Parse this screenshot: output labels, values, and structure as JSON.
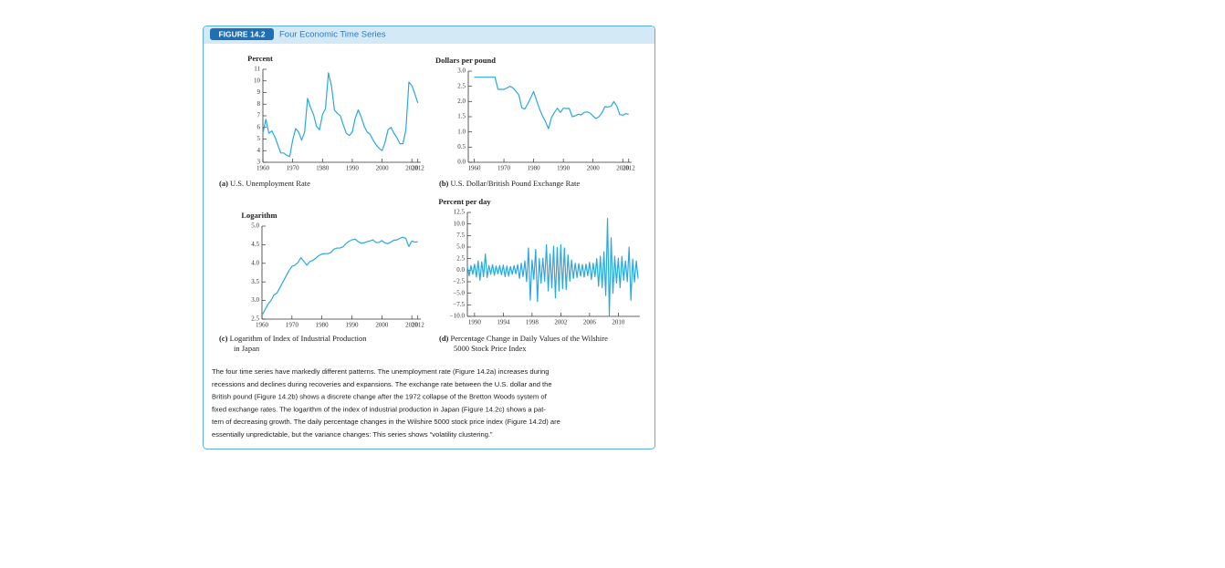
{
  "figure": {
    "label": "FIGURE 14.2",
    "title": "Four Economic Time Series",
    "text": [
      "The four time series have markedly different patterns. The unemployment rate (Figure 14.2a) increases during",
      "recessions and declines during recoveries and expansions. The exchange rate between the U.S. dollar and the",
      "British pound (Figure 14.2b) shows a discrete change after the 1972 collapse of the Bretton Woods system of",
      "fixed exchange rates. The logarithm of the index of industrial production in Japan (Figure 14.2c) shows a pat-",
      "tern of decreasing growth. The daily percentage changes in the Wilshire 5000 stock price index (Figure 14.2d) are",
      "essentially unpredictable, but the variance changes: This series shows “volatility clustering.”"
    ]
  },
  "chart_data": [
    {
      "type": "line",
      "y_label": "Percent",
      "caption_label": "(a)",
      "caption": [
        "U.S. Unemployment Rate"
      ],
      "color": "#29a8e0",
      "x": [
        1960,
        1961,
        1962,
        1963,
        1964,
        1965,
        1966,
        1967,
        1968,
        1969,
        1970,
        1971,
        1972,
        1973,
        1974,
        1975,
        1976,
        1977,
        1978,
        1979,
        1980,
        1981,
        1982,
        1983,
        1984,
        1985,
        1986,
        1987,
        1988,
        1989,
        1990,
        1991,
        1992,
        1993,
        1994,
        1995,
        1996,
        1997,
        1998,
        1999,
        2000,
        2001,
        2002,
        2003,
        2004,
        2005,
        2006,
        2007,
        2008,
        2009,
        2010,
        2011,
        2012
      ],
      "values": [
        5.5,
        6.7,
        5.5,
        5.7,
        5.2,
        4.5,
        3.8,
        3.8,
        3.6,
        3.5,
        4.9,
        5.9,
        5.6,
        4.9,
        5.6,
        8.5,
        7.7,
        7.1,
        6.1,
        5.8,
        7.1,
        7.6,
        10.7,
        9.6,
        7.5,
        7.2,
        7.0,
        6.2,
        5.5,
        5.3,
        5.6,
        6.8,
        7.5,
        6.9,
        6.1,
        5.6,
        5.4,
        4.9,
        4.5,
        4.2,
        4.0,
        4.7,
        5.8,
        6.0,
        5.5,
        5.1,
        4.6,
        4.6,
        5.8,
        9.9,
        9.6,
        8.9,
        8.1
      ],
      "xlim": [
        1960,
        2013
      ],
      "ylim": [
        3,
        11
      ],
      "xticks": [
        1960,
        1970,
        1980,
        1990,
        2000,
        2010,
        2012
      ],
      "yticks": [
        3,
        4,
        5,
        6,
        7,
        8,
        9,
        10,
        11
      ]
    },
    {
      "type": "line",
      "y_label": "Dollars per pound",
      "caption_label": "(b)",
      "caption": [
        "U.S. Dollar/British Pound Exchange Rate"
      ],
      "color": "#29a8e0",
      "x": [
        1960,
        1961,
        1962,
        1963,
        1964,
        1965,
        1966,
        1967,
        1968,
        1969,
        1970,
        1971,
        1972,
        1973,
        1974,
        1975,
        1976,
        1977,
        1978,
        1979,
        1980,
        1981,
        1982,
        1983,
        1984,
        1985,
        1986,
        1987,
        1988,
        1989,
        1990,
        1991,
        1992,
        1993,
        1994,
        1995,
        1996,
        1997,
        1998,
        1999,
        2000,
        2001,
        2002,
        2003,
        2004,
        2005,
        2006,
        2007,
        2008,
        2009,
        2010,
        2011,
        2012
      ],
      "values": [
        2.8,
        2.8,
        2.8,
        2.8,
        2.8,
        2.8,
        2.8,
        2.8,
        2.4,
        2.4,
        2.4,
        2.44,
        2.5,
        2.45,
        2.34,
        2.22,
        1.8,
        1.75,
        1.92,
        2.12,
        2.33,
        2.03,
        1.75,
        1.52,
        1.34,
        1.1,
        1.47,
        1.64,
        1.78,
        1.64,
        1.78,
        1.77,
        1.77,
        1.5,
        1.53,
        1.58,
        1.56,
        1.64,
        1.66,
        1.62,
        1.52,
        1.44,
        1.5,
        1.63,
        1.83,
        1.82,
        1.84,
        2.0,
        1.85,
        1.57,
        1.55,
        1.6,
        1.58
      ],
      "xlim": [
        1958,
        2013
      ],
      "ylim": [
        0,
        3
      ],
      "xticks": [
        1960,
        1970,
        1980,
        1990,
        2000,
        2010,
        2012
      ],
      "yticks": [
        {
          "value": 0,
          "label": "0.0"
        },
        0.5,
        {
          "value": 1,
          "label": "1.0"
        },
        1.5,
        {
          "value": 2,
          "label": "2.0"
        },
        2.5,
        {
          "value": 3,
          "label": "3.0"
        }
      ]
    },
    {
      "type": "line",
      "y_label": "Logarithm",
      "caption_label": "(c)",
      "caption": [
        "Logarithm of Index of Industrial Production",
        "in Japan"
      ],
      "color": "#29a8e0",
      "x": [
        1960,
        1961,
        1962,
        1963,
        1964,
        1965,
        1966,
        1967,
        1968,
        1969,
        1970,
        1971,
        1972,
        1973,
        1974,
        1975,
        1976,
        1977,
        1978,
        1979,
        1980,
        1981,
        1982,
        1983,
        1984,
        1985,
        1986,
        1987,
        1988,
        1989,
        1990,
        1991,
        1992,
        1993,
        1994,
        1995,
        1996,
        1997,
        1998,
        1999,
        2000,
        2001,
        2002,
        2003,
        2004,
        2005,
        2006,
        2007,
        2008,
        2009,
        2010,
        2011,
        2012
      ],
      "values": [
        2.6,
        2.75,
        2.9,
        3.0,
        3.15,
        3.2,
        3.35,
        3.5,
        3.65,
        3.8,
        3.92,
        3.95,
        4.02,
        4.15,
        4.05,
        3.95,
        4.05,
        4.08,
        4.14,
        4.21,
        4.25,
        4.26,
        4.26,
        4.29,
        4.38,
        4.41,
        4.41,
        4.44,
        4.53,
        4.59,
        4.63,
        4.65,
        4.59,
        4.54,
        4.55,
        4.58,
        4.6,
        4.63,
        4.56,
        4.56,
        4.61,
        4.55,
        4.53,
        4.57,
        4.62,
        4.63,
        4.67,
        4.7,
        4.67,
        4.45,
        4.6,
        4.57,
        4.58
      ],
      "xlim": [
        1960,
        2013
      ],
      "ylim": [
        2.5,
        5
      ],
      "xticks": [
        1960,
        1970,
        1980,
        1990,
        2000,
        2010,
        2012
      ],
      "yticks": [
        2.5,
        {
          "value": 3,
          "label": "3.0"
        },
        3.5,
        {
          "value": 4,
          "label": "4.0"
        },
        4.5,
        {
          "value": 5,
          "label": "5.0"
        }
      ]
    },
    {
      "type": "line",
      "y_label": "Percent per day",
      "caption_label": "(d)",
      "caption": [
        "Percentage Change in Daily Values of the Wilshire",
        "5000 Stock Price Index"
      ],
      "color": "#29a8e0",
      "x": [
        1989,
        1989.25,
        1989.5,
        1989.75,
        1990,
        1990.25,
        1990.5,
        1990.75,
        1991,
        1991.25,
        1991.5,
        1991.75,
        1992,
        1992.25,
        1992.5,
        1992.75,
        1993,
        1993.25,
        1993.5,
        1993.75,
        1994,
        1994.25,
        1994.5,
        1994.75,
        1995,
        1995.25,
        1995.5,
        1995.75,
        1996,
        1996.25,
        1996.5,
        1996.75,
        1997,
        1997.25,
        1997.5,
        1997.75,
        1998,
        1998.25,
        1998.5,
        1998.75,
        1999,
        1999.25,
        1999.5,
        1999.75,
        2000,
        2000.25,
        2000.5,
        2000.75,
        2001,
        2001.25,
        2001.5,
        2001.75,
        2002,
        2002.25,
        2002.5,
        2002.75,
        2003,
        2003.25,
        2003.5,
        2003.75,
        2004,
        2004.25,
        2004.5,
        2004.75,
        2005,
        2005.25,
        2005.5,
        2005.75,
        2006,
        2006.25,
        2006.5,
        2006.75,
        2007,
        2007.25,
        2007.5,
        2007.75,
        2008,
        2008.25,
        2008.5,
        2008.75,
        2009,
        2009.25,
        2009.5,
        2009.75,
        2010,
        2010.25,
        2010.5,
        2010.75,
        2011,
        2011.25,
        2011.5,
        2011.75,
        2012,
        2012.25,
        2012.5,
        2012.75
      ],
      "values": [
        0.8,
        -1.2,
        1.0,
        -0.9,
        1.3,
        -1.5,
        2.0,
        -2.2,
        1.8,
        -1.4,
        3.5,
        -1.6,
        1.0,
        -0.9,
        1.2,
        -1.1,
        0.9,
        -0.8,
        1.0,
        -1.0,
        1.1,
        -1.4,
        0.9,
        -1.3,
        0.8,
        -0.9,
        1.0,
        -0.8,
        1.2,
        -1.8,
        1.5,
        -1.4,
        2.0,
        -2.5,
        4.8,
        -6.5,
        2.2,
        -2.0,
        4.5,
        -6.8,
        2.5,
        -2.8,
        2.6,
        -2.4,
        5.5,
        -4.5,
        3.5,
        -3.8,
        5.2,
        -6.0,
        4.9,
        -4.5,
        5.5,
        -4.0,
        4.8,
        -4.2,
        3.3,
        -2.4,
        2.2,
        -1.8,
        1.5,
        -1.6,
        1.4,
        -1.3,
        1.2,
        -1.5,
        1.3,
        -1.2,
        1.7,
        -2.0,
        1.5,
        -1.4,
        2.5,
        -3.5,
        3.0,
        -3.8,
        4.0,
        -5.5,
        11.2,
        -9.8,
        7.0,
        -5.0,
        3.0,
        -2.8,
        2.6,
        -3.8,
        3.0,
        -2.2,
        2.0,
        -2.5,
        5.0,
        -6.5,
        2.4,
        -2.6,
        2.0,
        -1.8
      ],
      "xlim": [
        1989,
        2013
      ],
      "ylim": [
        -10,
        12.5
      ],
      "xticks": [
        1990,
        1994,
        1998,
        2002,
        2006,
        2010
      ],
      "yticks": [
        {
          "value": -10,
          "label": "−10.0"
        },
        {
          "value": -7.5,
          "label": "−7.5"
        },
        {
          "value": -5,
          "label": "−5.0"
        },
        {
          "value": -2.5,
          "label": "−2.5"
        },
        {
          "value": 0,
          "label": "0.0"
        },
        2.5,
        {
          "value": 5,
          "label": "5.0"
        },
        7.5,
        {
          "value": 10,
          "label": "10.0"
        },
        12.5
      ]
    }
  ]
}
